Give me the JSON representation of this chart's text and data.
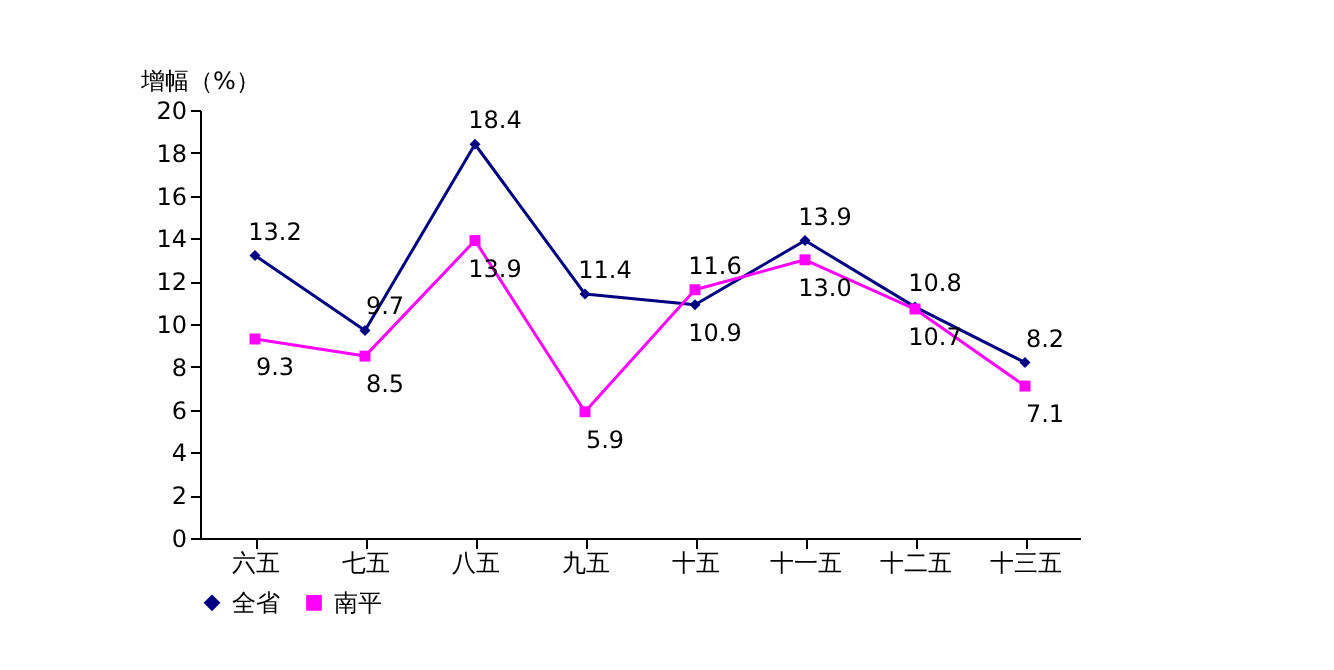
{
  "chart_data": {
    "type": "line",
    "ylabel": "增幅（%）",
    "categories": [
      "六五",
      "七五",
      "八五",
      "九五",
      "十五",
      "十一五",
      "十二五",
      "十三五"
    ],
    "series": [
      {
        "name": "全省",
        "color": "#000080",
        "marker": "diamond",
        "values": [
          13.2,
          9.7,
          18.4,
          11.4,
          10.9,
          13.9,
          10.8,
          8.2
        ],
        "value_labels": [
          "13.2",
          "9.7",
          "18.4",
          "11.4",
          "10.9",
          "13.9",
          "10.8",
          "8.2"
        ]
      },
      {
        "name": "南平",
        "color": "#ff00ff",
        "marker": "square",
        "values": [
          9.3,
          8.5,
          13.9,
          5.9,
          11.6,
          13.0,
          10.7,
          7.1
        ],
        "value_labels": [
          "9.3",
          "8.5",
          "13.9",
          "5.9",
          "11.6",
          "13.0",
          "10.7",
          "7.1"
        ]
      }
    ],
    "ylim": [
      0,
      20
    ],
    "yticks": [
      0,
      2,
      4,
      6,
      8,
      10,
      12,
      14,
      16,
      18,
      20
    ],
    "grid": false,
    "legend": "bottom"
  }
}
